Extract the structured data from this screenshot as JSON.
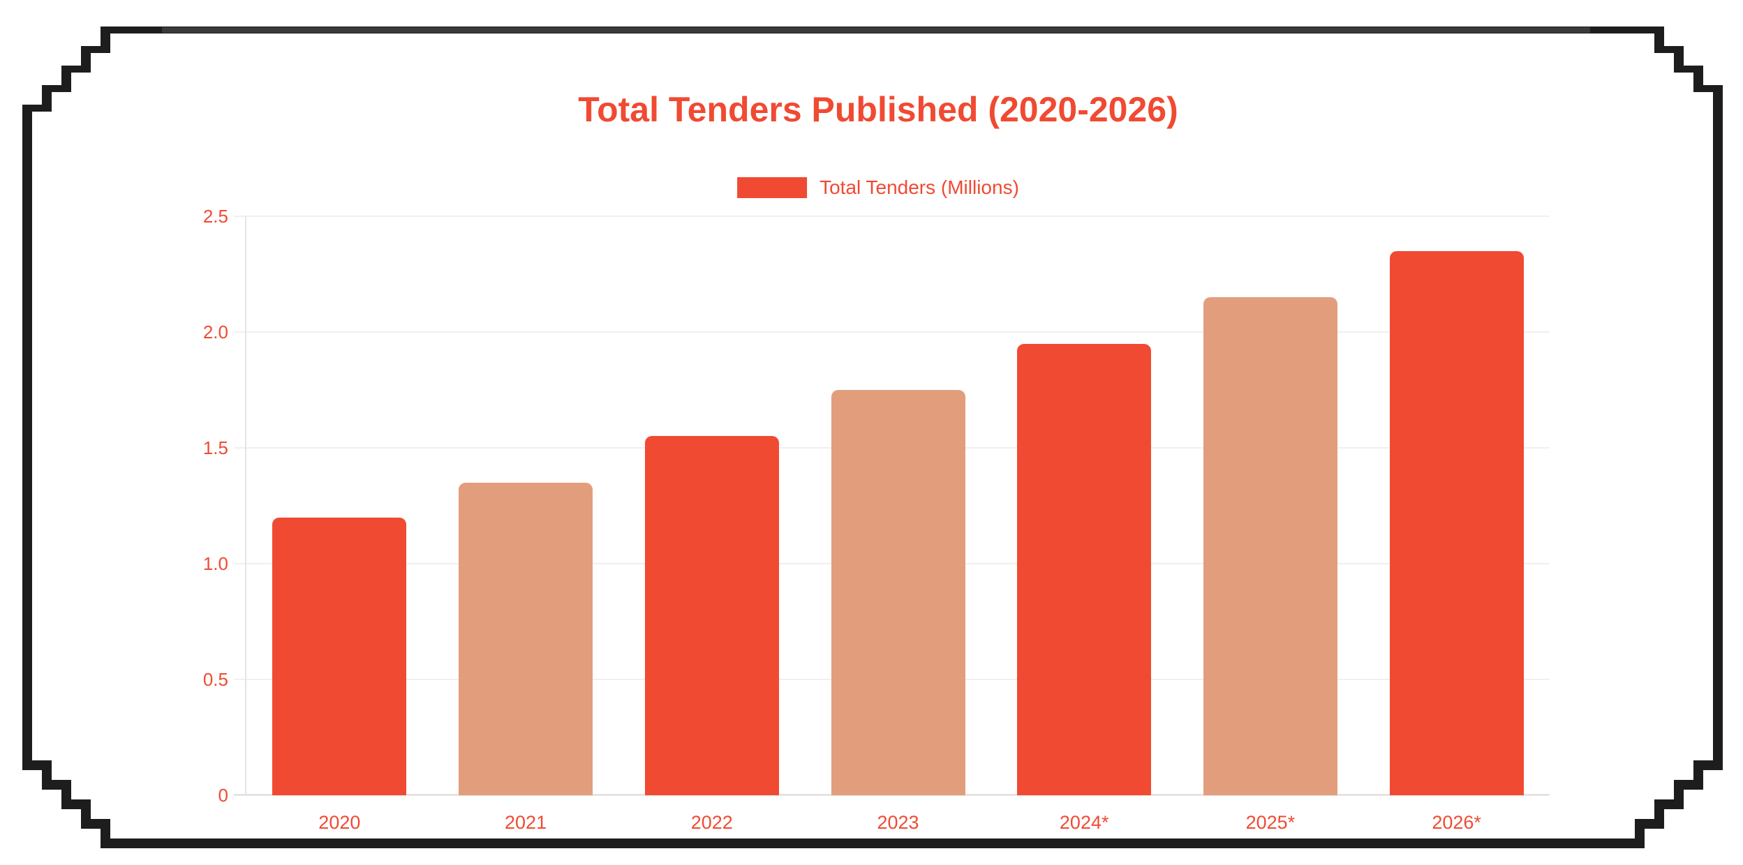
{
  "title": {
    "text": "Total Tenders Published (2020-2026)"
  },
  "legend": {
    "label": "Total Tenders (Millions)"
  },
  "chart_data": {
    "type": "bar",
    "title": "Total Tenders Published (2020-2026)",
    "legend_entries": [
      "Total Tenders (Millions)"
    ],
    "legend_position": "top",
    "categories": [
      "2020",
      "2021",
      "2022",
      "2023",
      "2024*",
      "2025*",
      "2026*"
    ],
    "series": [
      {
        "name": "Total Tenders (Millions)",
        "values": [
          1.2,
          1.35,
          1.55,
          1.75,
          1.95,
          2.15,
          2.35
        ]
      }
    ],
    "bar_colors": [
      "#f04a32",
      "#e29e7c",
      "#f04a32",
      "#e29e7c",
      "#f04a32",
      "#e29e7c",
      "#f04a32"
    ],
    "xlabel": "",
    "ylabel": "",
    "ylim": [
      0,
      2.5
    ],
    "yticks": [
      0,
      0.5,
      1.0,
      1.5,
      2.0,
      2.5
    ],
    "ytick_labels": [
      "0",
      "0.5",
      "1.0",
      "1.5",
      "2.0",
      "2.5"
    ],
    "grid": true
  },
  "colors": {
    "accent_red": "#f04a32",
    "bar_primary": "#f04a32",
    "bar_secondary": "#e29e7c",
    "text_accent": "#f04a32",
    "gridline": "#f2efed",
    "axis_line": "#e7e3e1",
    "frame_border": "#1d1d1d",
    "frame_top_strip": "#3a3a3a",
    "card_background": "#ffffff"
  }
}
